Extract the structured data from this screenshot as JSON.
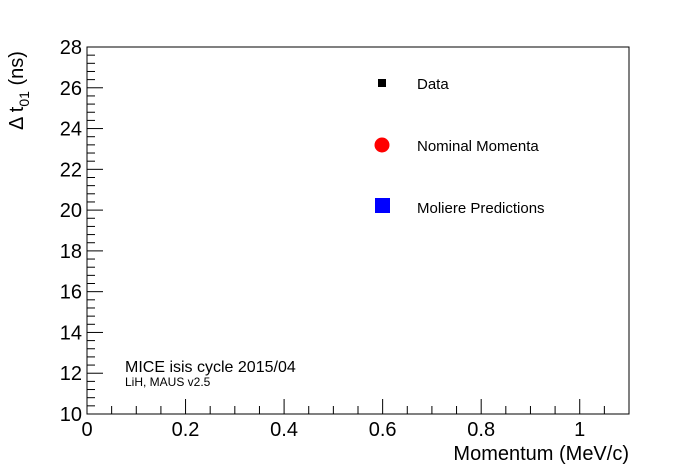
{
  "chart_data": {
    "type": "scatter",
    "xlabel": "Momentum (MeV/c)",
    "ylabel": {
      "prefix": "Δ t",
      "subscript": "01",
      "suffix": " (ns)"
    },
    "xlim": [
      0,
      1.1
    ],
    "ylim": [
      10,
      28
    ],
    "xticks": [
      {
        "value": 0,
        "label": "0"
      },
      {
        "value": 0.2,
        "label": "0.2"
      },
      {
        "value": 0.4,
        "label": "0.4"
      },
      {
        "value": 0.6,
        "label": "0.6"
      },
      {
        "value": 0.8,
        "label": "0.8"
      },
      {
        "value": 1.0,
        "label": "1"
      }
    ],
    "yticks": [
      {
        "value": 10,
        "label": "10"
      },
      {
        "value": 12,
        "label": "12"
      },
      {
        "value": 14,
        "label": "14"
      },
      {
        "value": 16,
        "label": "16"
      },
      {
        "value": 18,
        "label": "18"
      },
      {
        "value": 20,
        "label": "20"
      },
      {
        "value": 22,
        "label": "22"
      },
      {
        "value": 24,
        "label": "24"
      },
      {
        "value": 26,
        "label": "26"
      },
      {
        "value": 28,
        "label": "28"
      }
    ],
    "grid": false,
    "legend_position": "top-right",
    "series": [
      {
        "name": "Data",
        "marker": "small-square",
        "color": "#000000",
        "points": []
      },
      {
        "name": "Nominal Momenta",
        "marker": "circle",
        "color": "#ff0000",
        "points": []
      },
      {
        "name": "Moliere Predictions",
        "marker": "square",
        "color": "#0000ff",
        "points": []
      }
    ],
    "annotations": [
      {
        "text": "MICE isis cycle 2015/04",
        "style": "main"
      },
      {
        "text": "LiH, MAUS v2.5",
        "style": "sub"
      }
    ]
  }
}
